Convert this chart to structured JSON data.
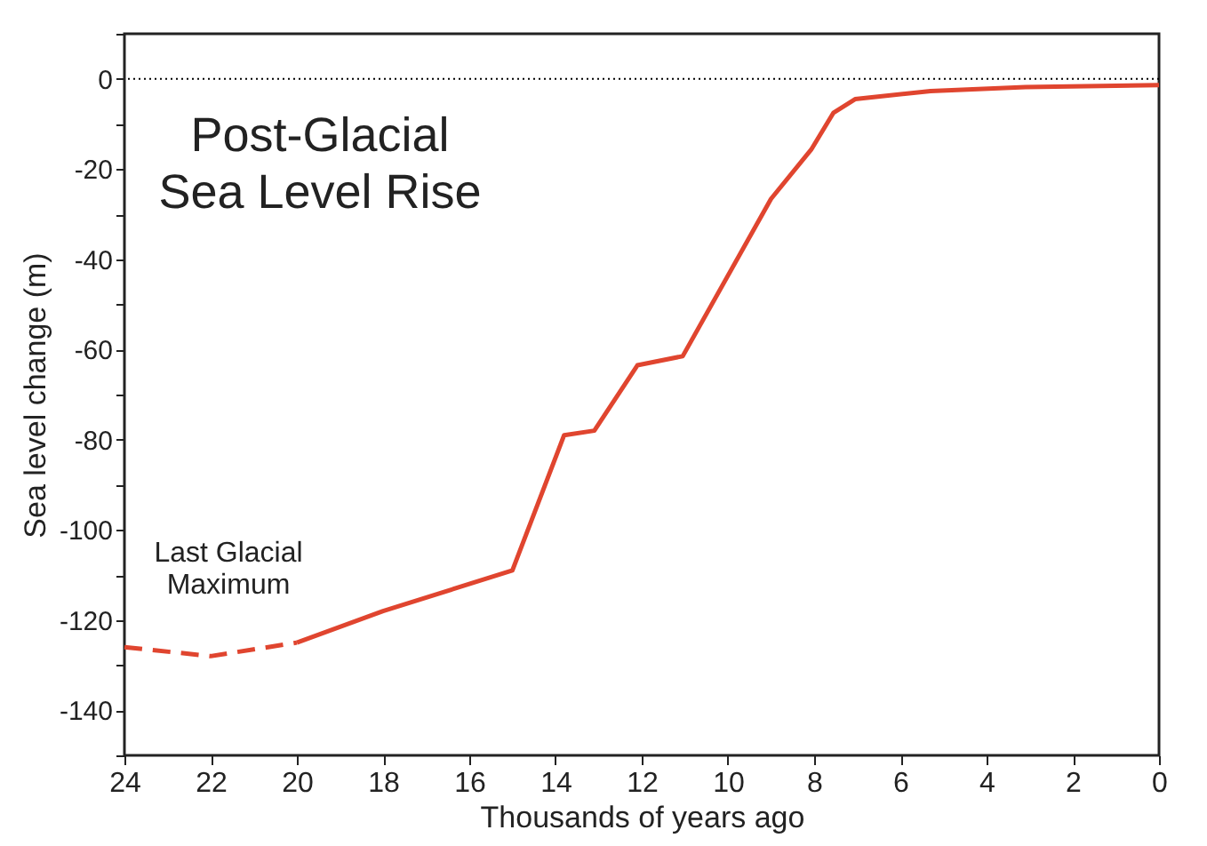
{
  "chart_data": {
    "type": "line",
    "title": "Post-Glacial\nSea Level Rise",
    "xlabel": "Thousands of years ago",
    "ylabel": "Sea level change (m)",
    "series": [
      {
        "color": "#e0452f",
        "line_style": "dashed",
        "x": [
          24,
          22,
          20
        ],
        "values": [
          -126,
          -128,
          -125
        ]
      },
      {
        "color": "#e0452f",
        "line_style": "solid",
        "x": [
          20,
          18,
          15,
          13.8,
          13.1,
          12.1,
          11.05,
          9,
          8.07,
          7.55,
          7.05,
          5.3,
          3.1,
          0
        ],
        "values": [
          -125,
          -118,
          -109,
          -79,
          -78,
          -63.5,
          -61.5,
          -26.6,
          -15.7,
          -7.5,
          -4.5,
          -2.7,
          -1.8,
          -1.4
        ]
      }
    ],
    "xlim": [
      24,
      0
    ],
    "xticks": [
      24,
      22,
      20,
      18,
      16,
      14,
      12,
      10,
      8,
      6,
      4,
      2,
      0
    ],
    "ylim": [
      -150,
      10
    ],
    "yticks": [
      {
        "value": 10,
        "label": null
      },
      0,
      {
        "value": -10,
        "label": null
      },
      -20,
      {
        "value": -30,
        "label": null
      },
      -40,
      {
        "value": -50,
        "label": null
      },
      -60,
      {
        "value": -70,
        "label": null
      },
      -80,
      {
        "value": -90,
        "label": null
      },
      -100,
      {
        "value": -110,
        "label": null
      },
      -120,
      {
        "value": -130,
        "label": null
      },
      -140,
      {
        "value": -150,
        "label": null
      }
    ],
    "ref_lines": [
      {
        "axis": "y",
        "value": 0,
        "color": "#000000",
        "line_style": "dotted"
      }
    ],
    "annotations": [
      {
        "text": "Last Glacial Maximum",
        "x": 22,
        "y": -128
      }
    ],
    "grid": false
  }
}
